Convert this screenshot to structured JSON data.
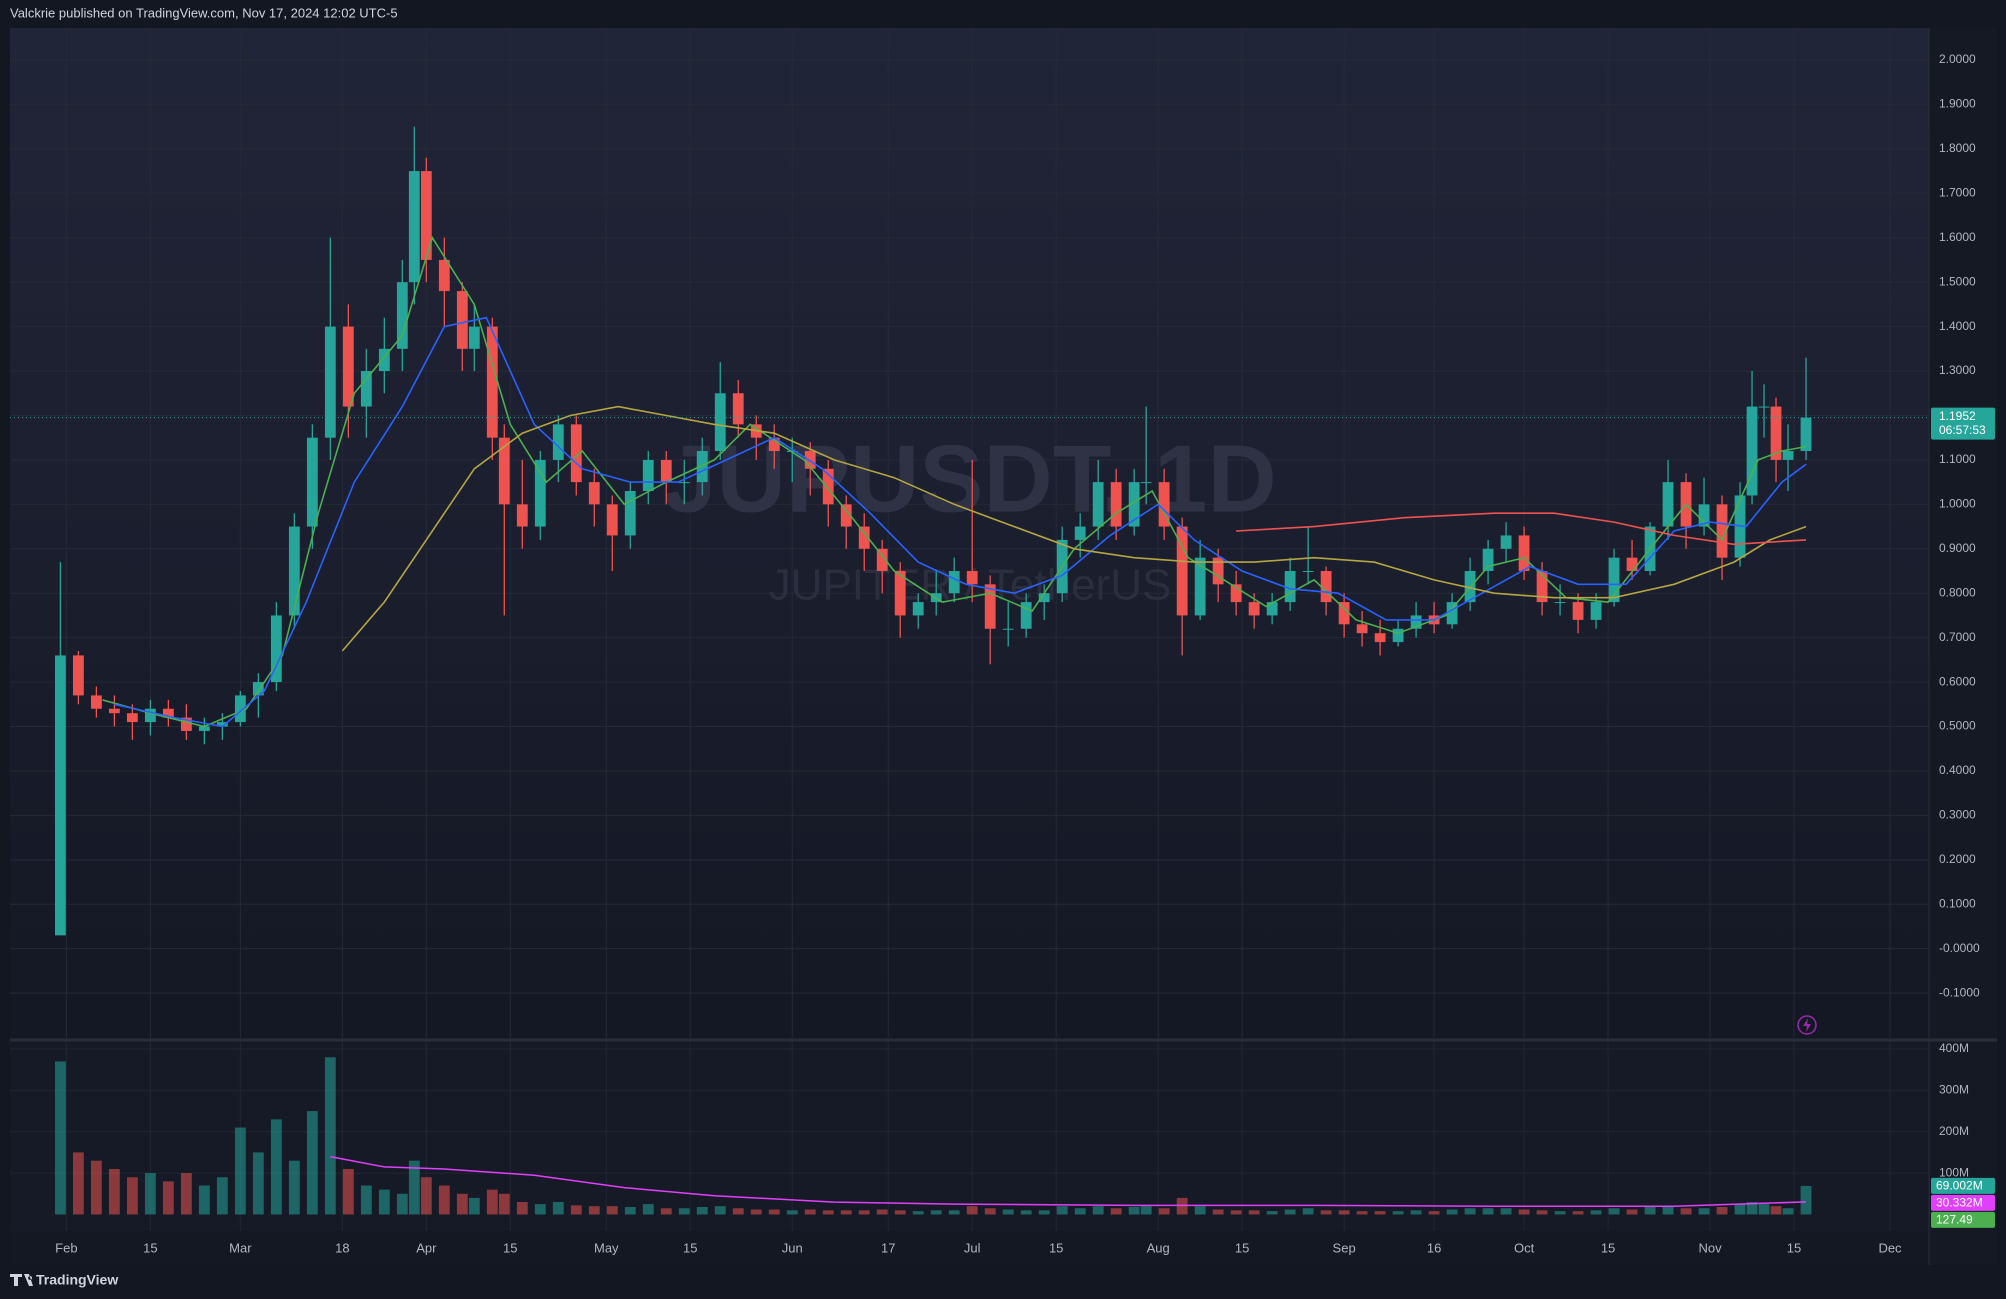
{
  "chart_data": {
    "type": "candlestick",
    "header": "Valckrie published on TradingView.com, Nov 17, 2024 12:02 UTC-5",
    "watermark": "JUPUSDT, 1D",
    "watermark_sub": "JUPITER / TetherUS",
    "footer": "TradingView",
    "up_color": "#26a69a",
    "down_color": "#ef5350",
    "grid": true,
    "xlim": [
      22.6,
      342.5
    ],
    "xticks": [
      {
        "value": 32,
        "label": "Feb"
      },
      {
        "value": 46,
        "label": "15"
      },
      {
        "value": 61,
        "label": "Mar"
      },
      {
        "value": 78,
        "label": "18"
      },
      {
        "value": 92,
        "label": "Apr"
      },
      {
        "value": 106,
        "label": "15"
      },
      {
        "value": 122,
        "label": "May"
      },
      {
        "value": 136,
        "label": "15"
      },
      {
        "value": 153,
        "label": "Jun"
      },
      {
        "value": 169,
        "label": "17"
      },
      {
        "value": 183,
        "label": "Jul"
      },
      {
        "value": 197,
        "label": "15"
      },
      {
        "value": 214,
        "label": "Aug"
      },
      {
        "value": 228,
        "label": "15"
      },
      {
        "value": 245,
        "label": "Sep"
      },
      {
        "value": 260,
        "label": "16"
      },
      {
        "value": 275,
        "label": "Oct"
      },
      {
        "value": 289,
        "label": "15"
      },
      {
        "value": 306,
        "label": "Nov"
      },
      {
        "value": 320,
        "label": "15"
      },
      {
        "value": 336,
        "label": "Dec"
      }
    ],
    "ylim": [
      -0.201,
      2.072
    ],
    "yticks": [
      {
        "value": 2.0,
        "label": "2.0000"
      },
      {
        "value": 1.9,
        "label": "1.9000"
      },
      {
        "value": 1.8,
        "label": "1.8000"
      },
      {
        "value": 1.7,
        "label": "1.7000"
      },
      {
        "value": 1.6,
        "label": "1.6000"
      },
      {
        "value": 1.5,
        "label": "1.5000"
      },
      {
        "value": 1.4,
        "label": "1.4000"
      },
      {
        "value": 1.3,
        "label": "1.3000"
      },
      {
        "value": 1.2,
        "label": "1.2000"
      },
      {
        "value": 1.1,
        "label": "1.1000"
      },
      {
        "value": 1.0,
        "label": "1.0000"
      },
      {
        "value": 0.9,
        "label": "0.9000"
      },
      {
        "value": 0.8,
        "label": "0.8000"
      },
      {
        "value": 0.7,
        "label": "0.7000"
      },
      {
        "value": 0.6,
        "label": "0.6000"
      },
      {
        "value": 0.5,
        "label": "0.5000"
      },
      {
        "value": 0.4,
        "label": "0.4000"
      },
      {
        "value": 0.3,
        "label": "0.3000"
      },
      {
        "value": 0.2,
        "label": "0.2000"
      },
      {
        "value": 0.1,
        "label": "0.1000"
      },
      {
        "value": 0,
        "label": "-0.0000"
      },
      {
        "value": -0.1,
        "label": "-0.1000"
      }
    ],
    "x": [
      31,
      34,
      37,
      40,
      43,
      46,
      49,
      52,
      55,
      58,
      61,
      64,
      67,
      70,
      73,
      76,
      79,
      82,
      85,
      88,
      90,
      92,
      95,
      98,
      100,
      103,
      105,
      108,
      111,
      114,
      117,
      120,
      123,
      126,
      129,
      132,
      135,
      138,
      141,
      144,
      147,
      150,
      153,
      156,
      159,
      162,
      165,
      168,
      171,
      174,
      177,
      180,
      183,
      186,
      189,
      192,
      195,
      198,
      201,
      204,
      207,
      210,
      212,
      215,
      218,
      221,
      224,
      227,
      230,
      233,
      236,
      239,
      242,
      245,
      248,
      251,
      254,
      257,
      260,
      263,
      266,
      269,
      272,
      275,
      278,
      281,
      284,
      287,
      290,
      293,
      296,
      299,
      302,
      305,
      308,
      311,
      313,
      315,
      317,
      319,
      322
    ],
    "open": [
      0.03,
      0.66,
      0.57,
      0.54,
      0.53,
      0.51,
      0.54,
      0.52,
      0.49,
      0.5,
      0.51,
      0.57,
      0.6,
      0.75,
      0.95,
      1.15,
      1.4,
      1.22,
      1.3,
      1.35,
      1.5,
      1.75,
      1.55,
      1.48,
      1.35,
      1.4,
      1.15,
      1.0,
      0.95,
      1.1,
      1.18,
      1.05,
      1.0,
      0.93,
      1.03,
      1.1,
      1.05,
      1.05,
      1.12,
      1.25,
      1.18,
      1.15,
      1.12,
      1.12,
      1.08,
      1.0,
      0.95,
      0.9,
      0.85,
      0.75,
      0.78,
      0.8,
      0.85,
      0.82,
      0.72,
      0.72,
      0.78,
      0.8,
      0.92,
      0.95,
      1.05,
      0.95,
      1.05,
      1.05,
      0.95,
      0.75,
      0.88,
      0.82,
      0.78,
      0.75,
      0.78,
      0.85,
      0.85,
      0.78,
      0.73,
      0.71,
      0.69,
      0.72,
      0.75,
      0.73,
      0.78,
      0.85,
      0.9,
      0.93,
      0.85,
      0.78,
      0.78,
      0.74,
      0.78,
      0.88,
      0.85,
      0.95,
      1.05,
      0.95,
      1.0,
      0.88,
      1.02,
      1.22,
      1.22,
      1.1,
      1.12
    ],
    "high": [
      0.87,
      0.67,
      0.59,
      0.57,
      0.55,
      0.56,
      0.56,
      0.55,
      0.52,
      0.53,
      0.58,
      0.62,
      0.78,
      0.98,
      1.18,
      1.6,
      1.45,
      1.35,
      1.42,
      1.55,
      1.85,
      1.78,
      1.6,
      1.5,
      1.45,
      1.42,
      1.18,
      1.1,
      1.12,
      1.2,
      1.2,
      1.08,
      1.02,
      1.05,
      1.12,
      1.12,
      1.1,
      1.15,
      1.32,
      1.28,
      1.2,
      1.18,
      1.15,
      1.14,
      1.1,
      1.02,
      0.98,
      0.92,
      0.87,
      0.8,
      0.85,
      0.88,
      1.1,
      0.84,
      0.78,
      0.8,
      0.82,
      0.95,
      0.98,
      1.1,
      1.08,
      1.08,
      1.22,
      1.08,
      0.97,
      0.92,
      0.9,
      0.85,
      0.8,
      0.8,
      0.88,
      0.95,
      0.86,
      0.8,
      0.76,
      0.74,
      0.74,
      0.78,
      0.78,
      0.8,
      0.88,
      0.92,
      0.96,
      0.95,
      0.87,
      0.82,
      0.8,
      0.8,
      0.9,
      0.92,
      0.96,
      1.1,
      1.07,
      1.06,
      1.02,
      1.05,
      1.3,
      1.27,
      1.24,
      1.18,
      1.33
    ],
    "low": [
      0.03,
      0.55,
      0.52,
      0.5,
      0.47,
      0.48,
      0.5,
      0.47,
      0.46,
      0.47,
      0.5,
      0.52,
      0.58,
      0.72,
      0.9,
      1.1,
      1.15,
      1.15,
      1.25,
      1.3,
      1.45,
      1.5,
      1.4,
      1.3,
      1.3,
      1.1,
      0.75,
      0.9,
      0.92,
      1.05,
      1.02,
      0.95,
      0.85,
      0.9,
      1.0,
      1.0,
      1.0,
      1.02,
      1.1,
      1.15,
      1.1,
      1.08,
      1.05,
      1.02,
      0.95,
      0.9,
      0.85,
      0.8,
      0.7,
      0.72,
      0.75,
      0.78,
      0.78,
      0.64,
      0.68,
      0.7,
      0.74,
      0.78,
      0.88,
      0.92,
      0.92,
      0.93,
      1.0,
      0.92,
      0.66,
      0.74,
      0.78,
      0.75,
      0.72,
      0.73,
      0.76,
      0.82,
      0.75,
      0.7,
      0.68,
      0.66,
      0.68,
      0.7,
      0.71,
      0.72,
      0.76,
      0.82,
      0.87,
      0.83,
      0.75,
      0.75,
      0.71,
      0.72,
      0.77,
      0.83,
      0.84,
      0.92,
      0.9,
      0.93,
      0.83,
      0.86,
      1.0,
      1.15,
      1.05,
      1.03,
      1.1
    ],
    "close": [
      0.66,
      0.57,
      0.54,
      0.53,
      0.51,
      0.54,
      0.52,
      0.49,
      0.5,
      0.51,
      0.57,
      0.6,
      0.75,
      0.95,
      1.15,
      1.4,
      1.22,
      1.3,
      1.35,
      1.5,
      1.75,
      1.55,
      1.48,
      1.35,
      1.4,
      1.15,
      1.0,
      0.95,
      1.1,
      1.18,
      1.05,
      1.0,
      0.93,
      1.03,
      1.1,
      1.05,
      1.05,
      1.12,
      1.25,
      1.18,
      1.15,
      1.12,
      1.12,
      1.08,
      1.0,
      0.95,
      0.9,
      0.85,
      0.75,
      0.78,
      0.8,
      0.85,
      0.82,
      0.72,
      0.72,
      0.78,
      0.8,
      0.92,
      0.95,
      1.05,
      0.95,
      1.05,
      1.05,
      0.95,
      0.75,
      0.88,
      0.82,
      0.78,
      0.75,
      0.78,
      0.85,
      0.85,
      0.78,
      0.73,
      0.71,
      0.69,
      0.72,
      0.75,
      0.73,
      0.78,
      0.85,
      0.9,
      0.93,
      0.85,
      0.78,
      0.78,
      0.74,
      0.78,
      0.88,
      0.85,
      0.95,
      1.05,
      0.95,
      1.0,
      0.88,
      1.02,
      1.22,
      1.22,
      1.1,
      1.12,
      1.1952
    ],
    "lines": [
      {
        "color": "#4caf50",
        "x": [
          38,
          46,
          55,
          62,
          68,
          74,
          80,
          88,
          93,
          100,
          106,
          112,
          118,
          125,
          132,
          140,
          146,
          155,
          163,
          170,
          178,
          186,
          193,
          200,
          207,
          213,
          219,
          225,
          232,
          240,
          247,
          254,
          262,
          269,
          275,
          282,
          289,
          296,
          302,
          308,
          314,
          318,
          322
        ],
        "values": [
          0.56,
          0.53,
          0.5,
          0.54,
          0.66,
          0.98,
          1.25,
          1.38,
          1.6,
          1.45,
          1.18,
          1.05,
          1.12,
          1.0,
          1.05,
          1.1,
          1.18,
          1.1,
          0.97,
          0.85,
          0.78,
          0.8,
          0.76,
          0.9,
          0.98,
          1.03,
          0.88,
          0.83,
          0.77,
          0.83,
          0.74,
          0.71,
          0.75,
          0.86,
          0.88,
          0.79,
          0.78,
          0.9,
          1.0,
          0.92,
          1.1,
          1.12,
          1.13
        ]
      },
      {
        "color": "#2962ff",
        "x": [
          40,
          50,
          58,
          65,
          72,
          80,
          88,
          95,
          102,
          110,
          118,
          126,
          134,
          142,
          150,
          158,
          166,
          174,
          182,
          190,
          198,
          206,
          214,
          220,
          228,
          236,
          244,
          252,
          260,
          268,
          276,
          284,
          292,
          300,
          306,
          312,
          318,
          322
        ],
        "values": [
          0.55,
          0.52,
          0.5,
          0.58,
          0.78,
          1.05,
          1.22,
          1.4,
          1.42,
          1.18,
          1.08,
          1.05,
          1.05,
          1.1,
          1.15,
          1.08,
          0.98,
          0.87,
          0.82,
          0.8,
          0.84,
          0.93,
          1.0,
          0.92,
          0.85,
          0.81,
          0.8,
          0.74,
          0.74,
          0.8,
          0.86,
          0.82,
          0.82,
          0.94,
          0.96,
          0.95,
          1.05,
          1.09
        ]
      },
      {
        "color": "#b5a642",
        "x": [
          78,
          85,
          92,
          100,
          108,
          116,
          124,
          132,
          140,
          150,
          160,
          170,
          180,
          190,
          200,
          210,
          220,
          230,
          240,
          250,
          260,
          270,
          280,
          290,
          300,
          310,
          316,
          322
        ],
        "values": [
          0.67,
          0.78,
          0.92,
          1.08,
          1.16,
          1.2,
          1.22,
          1.2,
          1.18,
          1.16,
          1.1,
          1.06,
          1.0,
          0.95,
          0.9,
          0.88,
          0.87,
          0.87,
          0.88,
          0.87,
          0.83,
          0.8,
          0.79,
          0.79,
          0.82,
          0.87,
          0.92,
          0.95
        ]
      },
      {
        "color": "#ef5350",
        "x": [
          227,
          240,
          255,
          270,
          280,
          290,
          300,
          310,
          322
        ],
        "values": [
          0.94,
          0.95,
          0.97,
          0.98,
          0.98,
          0.96,
          0.93,
          0.91,
          0.92
        ]
      }
    ],
    "last_price": 1.1952,
    "countdown": "06:57:53",
    "volume": {
      "ylim": [
        -40,
        417
      ],
      "yticks": [
        {
          "value": 400,
          "label": "400M"
        },
        {
          "value": 300,
          "label": "300M"
        },
        {
          "value": 200,
          "label": "200M"
        },
        {
          "value": 100,
          "label": "100M"
        }
      ],
      "values": [
        370,
        150,
        130,
        110,
        90,
        100,
        80,
        100,
        70,
        90,
        210,
        150,
        230,
        130,
        250,
        380,
        110,
        70,
        60,
        50,
        130,
        90,
        70,
        50,
        40,
        60,
        50,
        30,
        25,
        30,
        22,
        20,
        20,
        18,
        25,
        15,
        15,
        18,
        20,
        15,
        12,
        12,
        10,
        12,
        10,
        10,
        10,
        12,
        10,
        8,
        10,
        10,
        20,
        15,
        12,
        10,
        10,
        20,
        15,
        20,
        15,
        18,
        20,
        15,
        40,
        20,
        12,
        10,
        10,
        8,
        12,
        15,
        10,
        10,
        8,
        8,
        8,
        10,
        8,
        12,
        15,
        15,
        15,
        12,
        10,
        8,
        8,
        10,
        15,
        12,
        18,
        20,
        15,
        15,
        18,
        25,
        30,
        25,
        20,
        15,
        69.002
      ],
      "ma": {
        "color": "#e040fb",
        "x": [
          76,
          85,
          95,
          110,
          125,
          140,
          160,
          180,
          210,
          240,
          270,
          300,
          322
        ],
        "values": [
          140,
          115,
          110,
          95,
          65,
          45,
          30,
          25,
          22,
          22,
          20,
          20,
          30.332
        ]
      },
      "labels": [
        {
          "value": 69.002,
          "label": "69.002M",
          "color": "#26a69a"
        },
        {
          "value": 30.332,
          "label": "30.332M",
          "color": "#e040fb"
        },
        {
          "value": 127.49,
          "label": "127.49",
          "color": "#4caf50"
        }
      ]
    }
  }
}
